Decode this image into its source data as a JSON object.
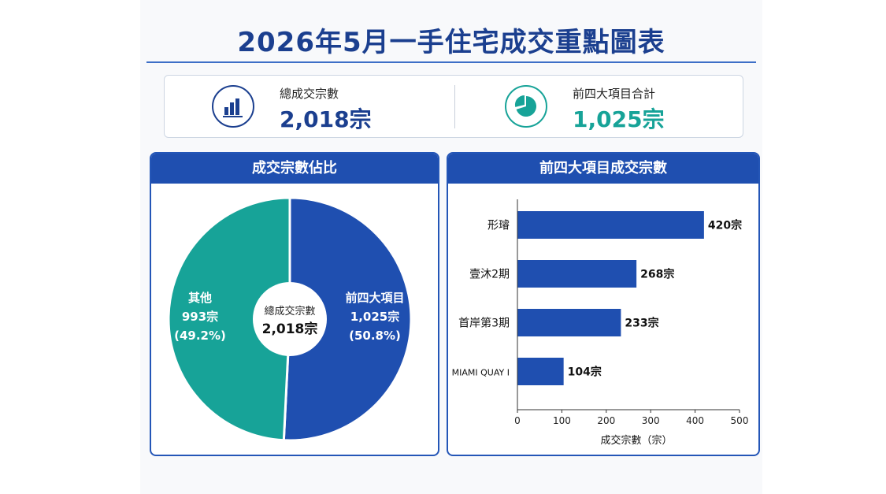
{
  "title": "2026年5月一手住宅成交重點圖表",
  "summary": {
    "total": {
      "label": "總成交宗數",
      "value": "2,018宗",
      "icon": "bar-chart-icon",
      "color": "#1b3f8f"
    },
    "top4": {
      "label": "前四大項目合計",
      "value": "1,025宗",
      "icon": "pie-chart-icon",
      "color": "#17a398"
    }
  },
  "donut_panel": {
    "title": "成交宗數佔比",
    "center_label": "總成交宗數",
    "center_value": "2,018宗",
    "slices": [
      {
        "name": "前四大項目",
        "value_text": "1,025宗",
        "pct_text": "(50.8%)"
      },
      {
        "name": "其他",
        "value_text": "993宗",
        "pct_text": "(49.2%)"
      }
    ]
  },
  "bar_panel": {
    "title": "前四大項目成交宗數"
  },
  "chart_data": [
    {
      "type": "pie",
      "title": "成交宗數佔比",
      "categories": [
        "前四大項目",
        "其他"
      ],
      "values": [
        1025,
        993
      ],
      "percent": [
        50.8,
        49.2
      ],
      "colors": [
        "#1f4fb0",
        "#17a398"
      ]
    },
    {
      "type": "bar",
      "orientation": "horizontal",
      "title": "前四大項目成交宗數",
      "categories": [
        "形璿",
        "壹沐2期",
        "首岸第3期",
        "MIAMI QUAY I"
      ],
      "values": [
        420,
        268,
        233,
        104
      ],
      "data_labels": [
        "420宗",
        "268宗",
        "233宗",
        "104宗"
      ],
      "xlabel": "成交宗數（宗）",
      "xlim": [
        0,
        500
      ],
      "xticks": [
        0,
        100,
        200,
        300,
        400,
        500
      ],
      "grid": false,
      "color": "#1f4fb0"
    }
  ]
}
